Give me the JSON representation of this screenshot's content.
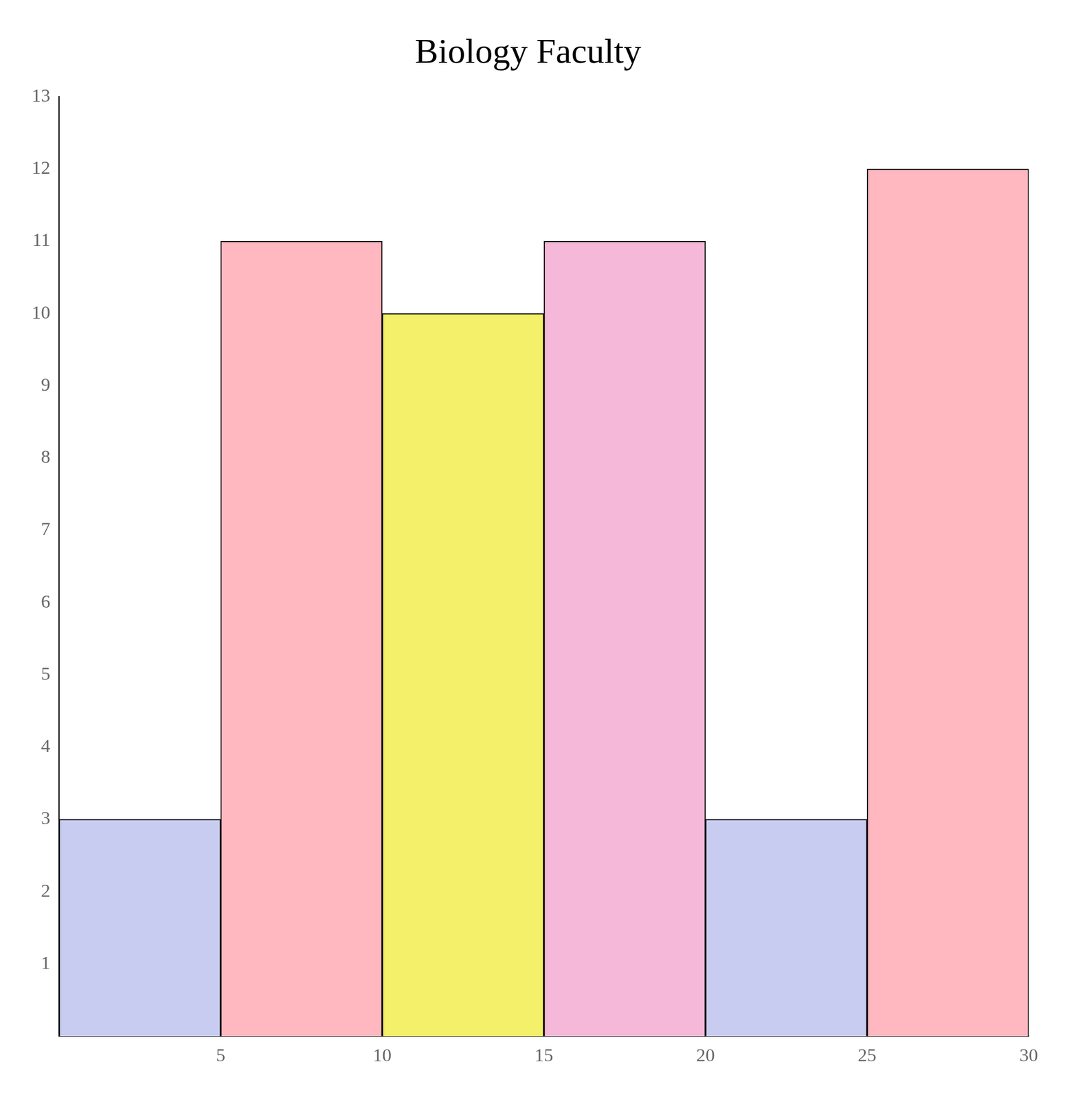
{
  "chart_data": {
    "type": "histogram",
    "title": "Biology Faculty",
    "bins": [
      0,
      5,
      10,
      15,
      20,
      25,
      30
    ],
    "values": [
      3,
      11,
      10,
      11,
      3,
      12
    ],
    "colors": [
      "#c8ccf0",
      "#ffb8c0",
      "#f5f06a",
      "#f5b8d8",
      "#c8ccf0",
      "#ffb8c0"
    ],
    "xlim": [
      0,
      30
    ],
    "ylim": [
      0,
      13
    ],
    "xticks": [
      5,
      10,
      15,
      20,
      25,
      30
    ],
    "yticks": [
      1,
      2,
      3,
      4,
      5,
      6,
      7,
      8,
      9,
      10,
      11,
      12,
      13
    ],
    "grid": false
  }
}
